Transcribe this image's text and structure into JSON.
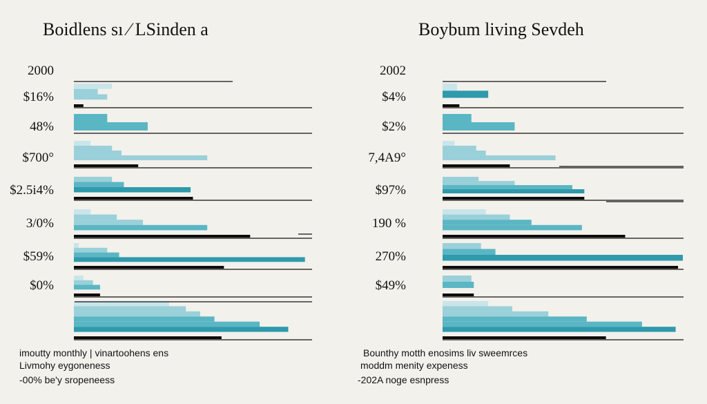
{
  "colors": {
    "background": "#f2f1ec",
    "teal_dark": "#2e9aac",
    "teal_mid": "#5bb6c4",
    "teal_light": "#9ad0d9",
    "teal_pale": "#c9e5ea",
    "black": "#0c0c0c",
    "grid": "#111111"
  },
  "chart_data": [
    {
      "type": "bar",
      "title": "Boidlens sı ⁄ LSinden a",
      "row_labels": [
        "2000",
        "$16%",
        "48%",
        "$700°",
        "$2.5i4%",
        "3/0%",
        "$59%",
        "$0%",
        ""
      ],
      "legend_lines": [
        "imoutty monthly | vinartoohens ens",
        "Livmohy eygoneness",
        "-00% be'y sropeneess"
      ],
      "rows": [
        {
          "bars": []
        },
        {
          "bars": [
            {
              "value": 0.16,
              "tone": "teal_pale"
            },
            {
              "value": 0.1,
              "tone": "teal_light"
            },
            {
              "value": 0.14,
              "tone": "teal_light"
            },
            {
              "value": 0.04,
              "tone": "black"
            }
          ]
        },
        {
          "bars": [
            {
              "value": 0.14,
              "tone": "teal_mid"
            },
            {
              "value": 0.31,
              "tone": "teal_mid"
            }
          ]
        },
        {
          "bars": [
            {
              "value": 0.07,
              "tone": "teal_pale"
            },
            {
              "value": 0.16,
              "tone": "teal_light"
            },
            {
              "value": 0.2,
              "tone": "teal_light"
            },
            {
              "value": 0.56,
              "tone": "teal_light"
            },
            {
              "value": 0.27,
              "tone": "black"
            }
          ]
        },
        {
          "bars": [
            {
              "value": 0.16,
              "tone": "teal_light"
            },
            {
              "value": 0.21,
              "tone": "teal_mid"
            },
            {
              "value": 0.49,
              "tone": "teal_dark"
            },
            {
              "value": 0.5,
              "tone": "black"
            }
          ]
        },
        {
          "bars": [
            {
              "value": 0.07,
              "tone": "teal_pale"
            },
            {
              "value": 0.18,
              "tone": "teal_light"
            },
            {
              "value": 0.29,
              "tone": "teal_light"
            },
            {
              "value": 0.56,
              "tone": "teal_mid"
            },
            {
              "value": 0.74,
              "tone": "black"
            }
          ]
        },
        {
          "bars": [
            {
              "value": 0.02,
              "tone": "teal_pale"
            },
            {
              "value": 0.14,
              "tone": "teal_light"
            },
            {
              "value": 0.19,
              "tone": "teal_mid"
            },
            {
              "value": 0.97,
              "tone": "teal_dark"
            },
            {
              "value": 0.63,
              "tone": "black"
            }
          ]
        },
        {
          "bars": [
            {
              "value": 0.04,
              "tone": "teal_pale"
            },
            {
              "value": 0.08,
              "tone": "teal_light"
            },
            {
              "value": 0.11,
              "tone": "teal_mid"
            },
            {
              "value": 0.11,
              "tone": "black"
            }
          ]
        },
        {
          "bars": [
            {
              "value": 0.4,
              "tone": "teal_pale"
            },
            {
              "value": 0.47,
              "tone": "teal_light"
            },
            {
              "value": 0.53,
              "tone": "teal_light"
            },
            {
              "value": 0.59,
              "tone": "teal_mid"
            },
            {
              "value": 0.78,
              "tone": "teal_mid"
            },
            {
              "value": 0.9,
              "tone": "teal_dark"
            },
            {
              "value": 0.62,
              "tone": "black"
            }
          ]
        }
      ]
    },
    {
      "type": "bar",
      "title": "Boybum living Sevdeh",
      "row_labels": [
        "2002",
        "$4%",
        "$2%",
        "7,4A9°",
        "$97%",
        "190 %",
        "270%",
        "$49%",
        ""
      ],
      "legend_lines": [
        "Bounthy motth enosims liv sweemrces",
        "moddm menity expeness",
        "-202A noge esnpress"
      ],
      "rows": [
        {
          "bars": []
        },
        {
          "bars": [
            {
              "value": 0.06,
              "tone": "teal_pale"
            },
            {
              "value": 0.19,
              "tone": "teal_dark"
            },
            {
              "value": 0.07,
              "tone": "black"
            }
          ]
        },
        {
          "bars": [
            {
              "value": 0.12,
              "tone": "teal_mid"
            },
            {
              "value": 0.3,
              "tone": "teal_mid"
            }
          ]
        },
        {
          "bars": [
            {
              "value": 0.05,
              "tone": "teal_pale"
            },
            {
              "value": 0.14,
              "tone": "teal_light"
            },
            {
              "value": 0.18,
              "tone": "teal_light"
            },
            {
              "value": 0.47,
              "tone": "teal_light"
            },
            {
              "value": 0.28,
              "tone": "black"
            }
          ]
        },
        {
          "bars": [
            {
              "value": 0.15,
              "tone": "teal_light"
            },
            {
              "value": 0.3,
              "tone": "teal_light"
            },
            {
              "value": 0.54,
              "tone": "teal_mid"
            },
            {
              "value": 0.59,
              "tone": "teal_dark"
            },
            {
              "value": 0.59,
              "tone": "black"
            }
          ]
        },
        {
          "bars": [
            {
              "value": 0.18,
              "tone": "teal_pale"
            },
            {
              "value": 0.28,
              "tone": "teal_light"
            },
            {
              "value": 0.37,
              "tone": "teal_mid"
            },
            {
              "value": 0.58,
              "tone": "teal_mid"
            },
            {
              "value": 0.76,
              "tone": "black"
            }
          ]
        },
        {
          "bars": [
            {
              "value": 0.16,
              "tone": "teal_light"
            },
            {
              "value": 0.22,
              "tone": "teal_mid"
            },
            {
              "value": 1.0,
              "tone": "teal_dark"
            },
            {
              "value": 0.98,
              "tone": "black"
            }
          ]
        },
        {
          "bars": [
            {
              "value": 0.12,
              "tone": "teal_light"
            },
            {
              "value": 0.13,
              "tone": "teal_mid"
            },
            {
              "value": 0.13,
              "tone": "black"
            }
          ]
        },
        {
          "bars": [
            {
              "value": 0.19,
              "tone": "teal_pale"
            },
            {
              "value": 0.29,
              "tone": "teal_light"
            },
            {
              "value": 0.44,
              "tone": "teal_light"
            },
            {
              "value": 0.6,
              "tone": "teal_mid"
            },
            {
              "value": 0.83,
              "tone": "teal_mid"
            },
            {
              "value": 0.97,
              "tone": "teal_dark"
            },
            {
              "value": 0.68,
              "tone": "black"
            }
          ]
        }
      ]
    }
  ]
}
